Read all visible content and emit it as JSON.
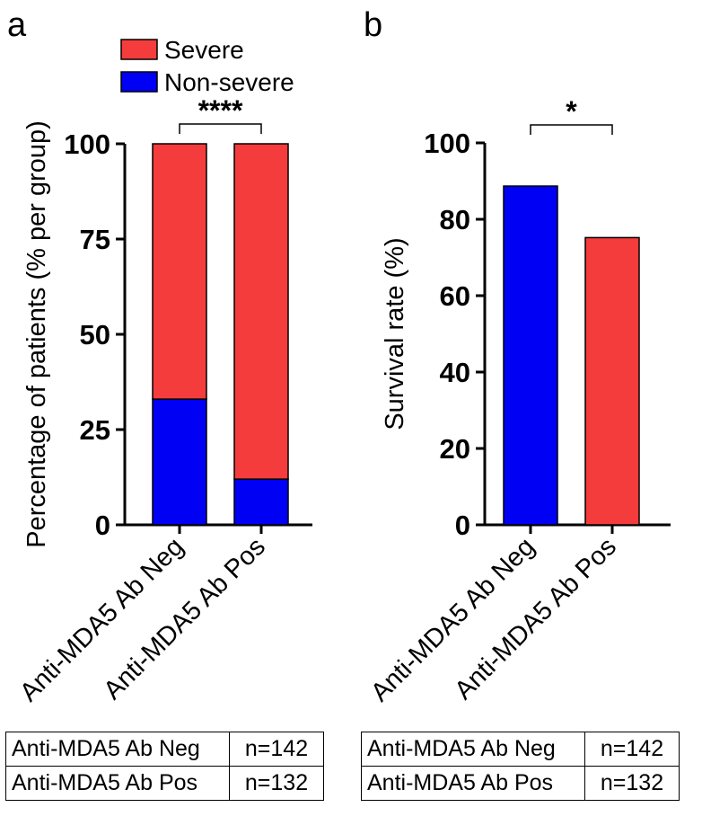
{
  "panels": [
    {
      "letter": "a"
    },
    {
      "letter": "b"
    }
  ],
  "chart_data": [
    {
      "type": "bar",
      "stacked": true,
      "categories": [
        "Anti-MDA5 Ab Neg",
        "Anti-MDA5 Ab Pos"
      ],
      "series": [
        {
          "name": "Non-severe",
          "color": "#0000f5",
          "values": [
            33,
            12
          ]
        },
        {
          "name": "Severe",
          "color": "#f53c3c",
          "values": [
            67,
            88
          ]
        }
      ],
      "ylabel": "Percentage of patients (% per group)",
      "ylim": [
        0,
        100
      ],
      "yticks": [
        0,
        25,
        50,
        75,
        100
      ],
      "legend_position": "top",
      "significance": {
        "label": "****",
        "between": [
          0,
          1
        ]
      },
      "grid": false
    },
    {
      "type": "bar",
      "categories": [
        "Anti-MDA5 Ab Neg",
        "Anti-MDA5 Ab Pos"
      ],
      "values": [
        88.7,
        75.2
      ],
      "bar_colors": [
        "#0000f5",
        "#f53c3c"
      ],
      "ylabel": "Survival rate (%)",
      "ylim": [
        0,
        100
      ],
      "yticks": [
        0,
        20,
        40,
        60,
        80,
        100
      ],
      "significance": {
        "label": "*",
        "between": [
          0,
          1
        ]
      },
      "grid": false
    }
  ],
  "tables": [
    {
      "rows": [
        {
          "label": "Anti-MDA5 Ab Neg",
          "n": "n=142"
        },
        {
          "label": "Anti-MDA5 Ab Pos",
          "n": "n=132"
        }
      ]
    },
    {
      "rows": [
        {
          "label": "Anti-MDA5 Ab Neg",
          "n": "n=142"
        },
        {
          "label": "Anti-MDA5 Ab Pos",
          "n": "n=132"
        }
      ]
    }
  ]
}
